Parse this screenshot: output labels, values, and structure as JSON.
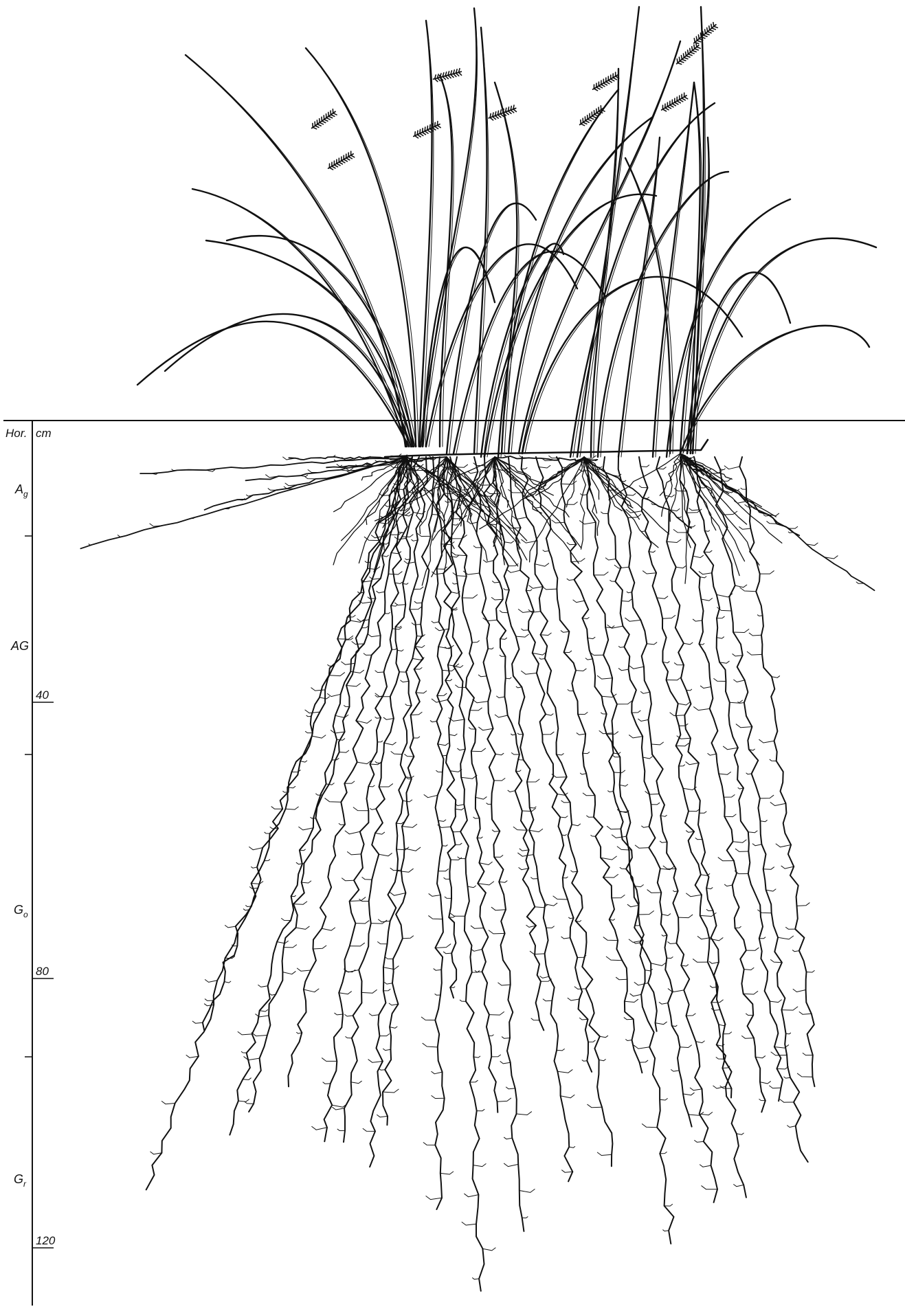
{
  "scale_header": {
    "horizon_heading": "Hor.",
    "depth_heading": "cm"
  },
  "horizons": [
    {
      "label_main": "A",
      "label_sub": "g",
      "name": "horizon-ag-lower"
    },
    {
      "label_main": "AG",
      "label_sub": "",
      "name": "horizon-ag-upper"
    },
    {
      "label_main": "G",
      "label_sub": "o",
      "name": "horizon-go"
    },
    {
      "label_main": "G",
      "label_sub": "r",
      "name": "horizon-gr"
    }
  ],
  "depth_labels": [
    "40",
    "80",
    "120"
  ],
  "colors": {
    "ink": "#111111",
    "paper": "#ffffff"
  },
  "icons": {
    "plant": "grass-tussock-icon",
    "roots": "root-system-icon"
  }
}
